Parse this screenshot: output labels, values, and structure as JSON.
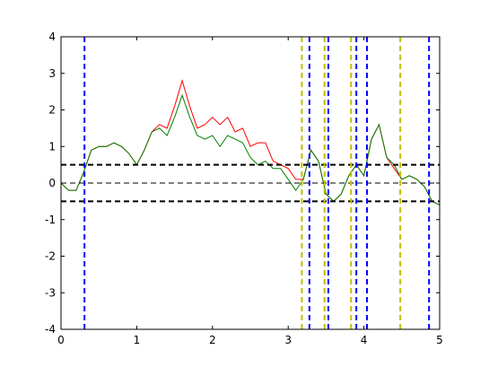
{
  "chart_data": {
    "type": "line",
    "x": [
      0,
      0.1,
      0.2,
      0.3,
      0.4,
      0.5,
      0.6,
      0.7,
      0.8,
      0.9,
      1.0,
      1.1,
      1.2,
      1.3,
      1.4,
      1.5,
      1.6,
      1.7,
      1.8,
      1.9,
      2.0,
      2.1,
      2.2,
      2.3,
      2.4,
      2.5,
      2.6,
      2.7,
      2.8,
      2.9,
      3.0,
      3.1,
      3.2,
      3.3,
      3.4,
      3.5,
      3.6,
      3.7,
      3.8,
      3.9,
      4.0,
      4.1,
      4.2,
      4.3,
      4.4,
      4.5,
      4.6,
      4.7,
      4.8,
      4.9,
      5.0
    ],
    "series": [
      {
        "color": "#ff0000",
        "values": [
          0,
          -0.2,
          -0.2,
          0.3,
          0.9,
          1.0,
          1.0,
          1.1,
          1.0,
          0.8,
          0.5,
          0.9,
          1.4,
          1.6,
          1.5,
          2.1,
          2.8,
          2.1,
          1.5,
          1.6,
          1.8,
          1.6,
          1.8,
          1.4,
          1.5,
          1.0,
          1.1,
          1.1,
          0.6,
          0.5,
          0.4,
          0.1,
          0.1,
          0.9,
          0.6,
          -0.3,
          -0.5,
          -0.3,
          0.2,
          0.5,
          0.2,
          1.2,
          1.6,
          0.7,
          0.4,
          0.1,
          0.2,
          0.1,
          -0.1,
          -0.5,
          -0.6
        ]
      },
      {
        "color": "#008000",
        "values": [
          0,
          -0.2,
          -0.2,
          0.3,
          0.9,
          1.0,
          1.0,
          1.1,
          1.0,
          0.8,
          0.5,
          0.9,
          1.4,
          1.5,
          1.3,
          1.8,
          2.4,
          1.8,
          1.3,
          1.2,
          1.3,
          1.0,
          1.3,
          1.2,
          1.1,
          0.7,
          0.5,
          0.6,
          0.4,
          0.4,
          0.1,
          -0.2,
          0.1,
          0.9,
          0.6,
          -0.3,
          -0.5,
          -0.3,
          0.2,
          0.5,
          0.2,
          1.2,
          1.6,
          0.7,
          0.5,
          0.1,
          0.2,
          0.1,
          -0.1,
          -0.5,
          -0.6
        ]
      }
    ],
    "hlines": [
      {
        "y": 0.5,
        "color": "#000000",
        "width": 2
      },
      {
        "y": 0,
        "color": "#000000",
        "width": 1
      },
      {
        "y": -0.5,
        "color": "#000000",
        "width": 2
      }
    ],
    "vlines": [
      {
        "color": "#bfbf00",
        "x": [
          3.18,
          3.48,
          3.83,
          4.48
        ]
      },
      {
        "color": "#0000ff",
        "x": [
          0.31,
          3.28,
          3.53,
          3.9,
          4.04,
          4.86
        ]
      }
    ],
    "xlim": [
      0,
      5
    ],
    "ylim": [
      -4,
      4
    ],
    "xticks": [
      0,
      1,
      2,
      3,
      4,
      5
    ],
    "yticks": [
      -4,
      -3,
      -2,
      -1,
      0,
      1,
      2,
      3,
      4
    ]
  }
}
